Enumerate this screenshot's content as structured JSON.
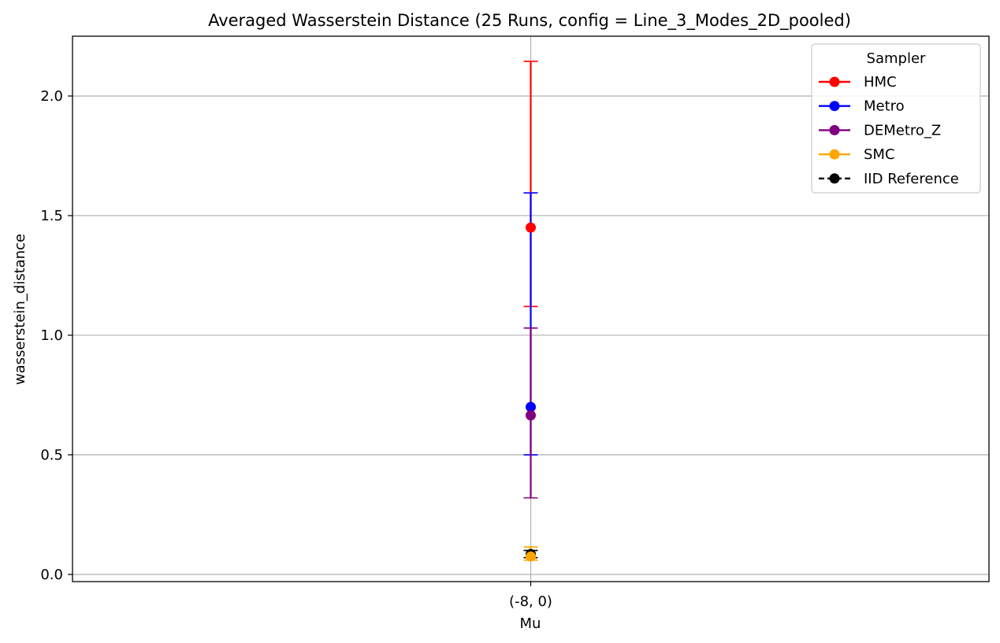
{
  "chart_data": {
    "type": "scatter",
    "title": "Averaged Wasserstein Distance (25 Runs, config = Line_3_Modes_2D_pooled)",
    "xlabel": "Mu",
    "ylabel": "wasserstein_distance",
    "categories": [
      "(-8, 0)"
    ],
    "ylim": [
      -0.03,
      2.25
    ],
    "yticks": [
      0.0,
      0.5,
      1.0,
      1.5,
      2.0
    ],
    "ytick_labels": [
      "0.0",
      "0.5",
      "1.0",
      "1.5",
      "2.0"
    ],
    "grid": true,
    "legend_position": "top-right",
    "legend_title": "Sampler",
    "series": [
      {
        "name": "HMC",
        "color": "#ff0000",
        "linestyle": "solid",
        "values": [
          1.45
        ],
        "err_low": [
          1.12
        ],
        "err_high": [
          2.145
        ]
      },
      {
        "name": "Metro",
        "color": "#0000ff",
        "linestyle": "solid",
        "values": [
          0.7
        ],
        "err_low": [
          0.5
        ],
        "err_high": [
          1.595
        ]
      },
      {
        "name": "DEMetro_Z",
        "color": "#800080",
        "linestyle": "solid",
        "values": [
          0.665
        ],
        "err_low": [
          0.32
        ],
        "err_high": [
          1.03
        ]
      },
      {
        "name": "IID Reference",
        "color": "#000000",
        "linestyle": "dashed",
        "values": [
          0.085
        ],
        "err_low": [
          0.07
        ],
        "err_high": [
          0.1
        ]
      },
      {
        "name": "SMC",
        "color": "#ffa500",
        "linestyle": "solid",
        "values": [
          0.075
        ],
        "err_low": [
          0.06
        ],
        "err_high": [
          0.115
        ]
      }
    ],
    "legend_order": [
      "HMC",
      "Metro",
      "DEMetro_Z",
      "SMC",
      "IID Reference"
    ]
  }
}
